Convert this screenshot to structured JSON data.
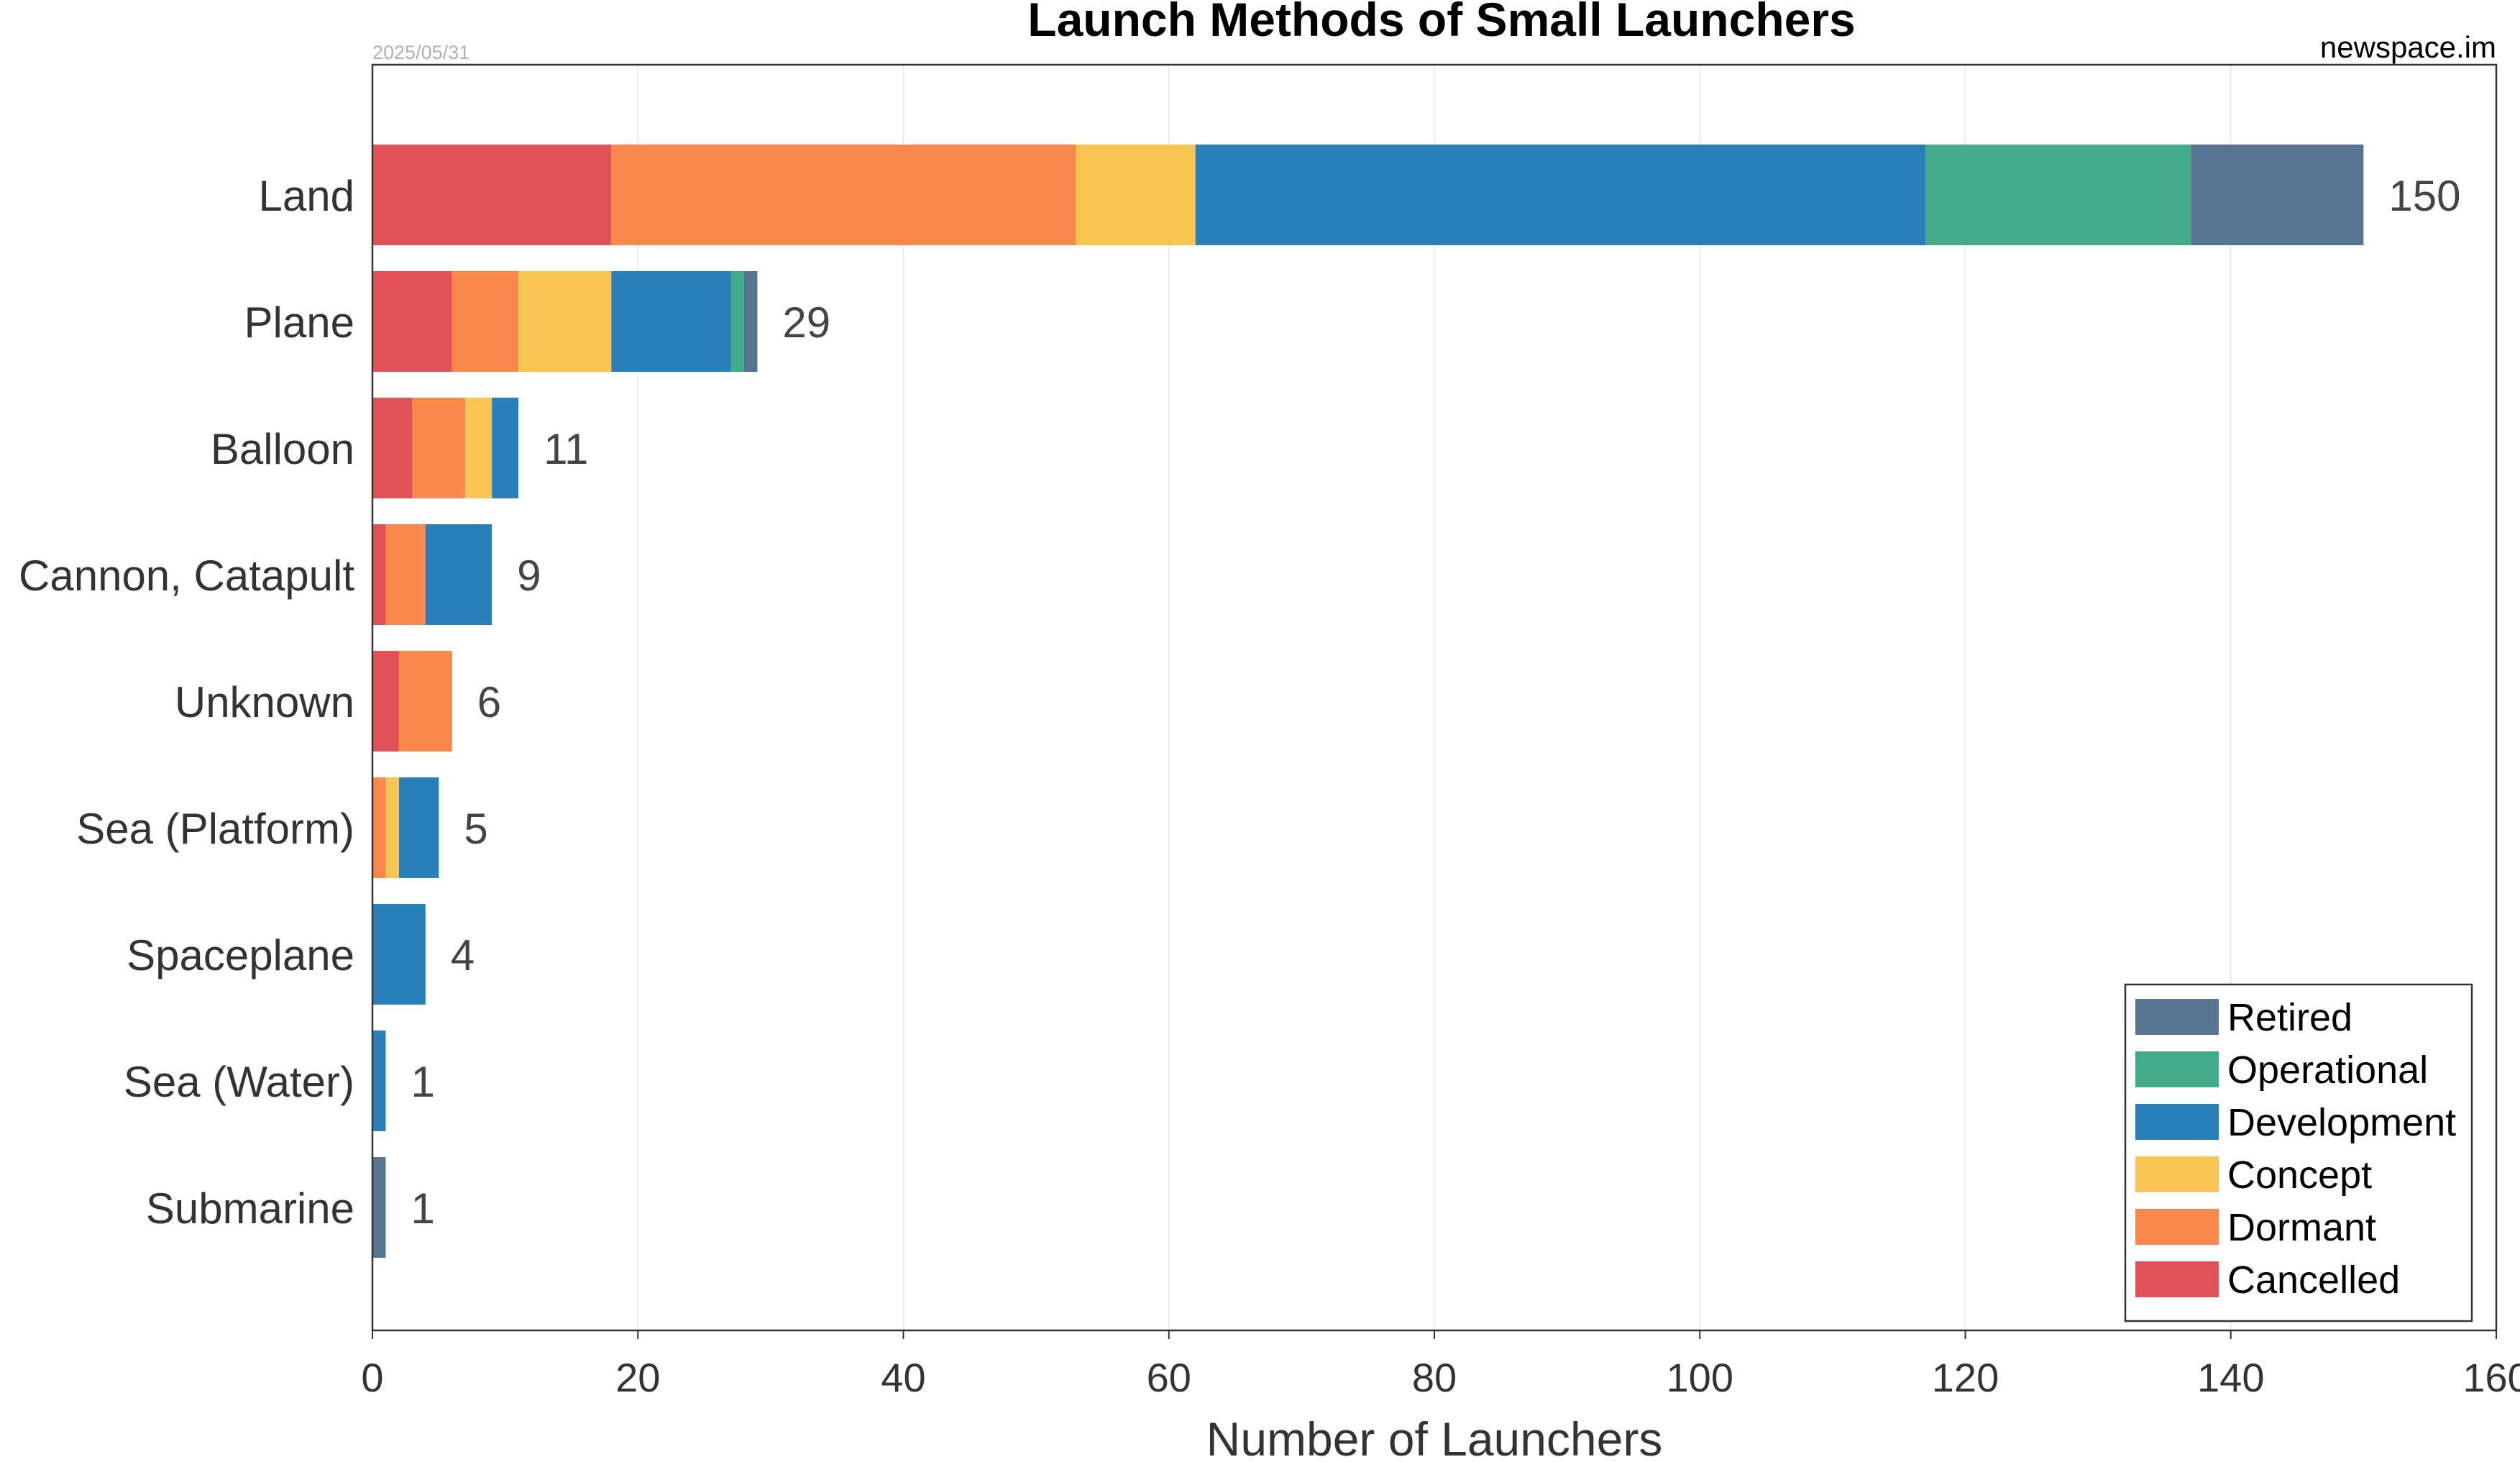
{
  "chart_data": {
    "type": "bar",
    "orientation": "horizontal",
    "stacked": true,
    "title": "Launch Methods of Small Launchers",
    "date": "2025/05/31",
    "source": "newspace.im",
    "xlabel": "Number of Launchers",
    "ylabel": "",
    "xlim": [
      0,
      160
    ],
    "xticks": [
      0,
      20,
      40,
      60,
      80,
      100,
      120,
      140,
      160
    ],
    "grid": "vertical",
    "legend_position": "bottom-right",
    "categories": [
      "Land",
      "Plane",
      "Balloon",
      "Cannon, Catapult",
      "Unknown",
      "Sea (Platform)",
      "Spaceplane",
      "Sea (Water)",
      "Submarine"
    ],
    "totals": [
      150,
      29,
      11,
      9,
      6,
      5,
      4,
      1,
      1
    ],
    "series": [
      {
        "name": "Cancelled",
        "color": "#e15258",
        "values": [
          18,
          6,
          3,
          1,
          2,
          0,
          0,
          0,
          0
        ]
      },
      {
        "name": "Dormant",
        "color": "#f8894a",
        "values": [
          35,
          5,
          4,
          3,
          4,
          1,
          0,
          0,
          0
        ]
      },
      {
        "name": "Concept",
        "color": "#f9c552",
        "values": [
          9,
          7,
          2,
          0,
          0,
          1,
          0,
          0,
          0
        ]
      },
      {
        "name": "Development",
        "color": "#2980b9",
        "values": [
          55,
          9,
          2,
          5,
          0,
          3,
          4,
          1,
          0
        ]
      },
      {
        "name": "Operational",
        "color": "#42ab8a",
        "values": [
          20,
          1,
          0,
          0,
          0,
          0,
          0,
          0,
          0
        ]
      },
      {
        "name": "Retired",
        "color": "#577590",
        "values": [
          13,
          1,
          0,
          0,
          0,
          0,
          0,
          0,
          1
        ]
      }
    ],
    "legend_order": [
      "Retired",
      "Operational",
      "Development",
      "Concept",
      "Dormant",
      "Cancelled"
    ]
  }
}
